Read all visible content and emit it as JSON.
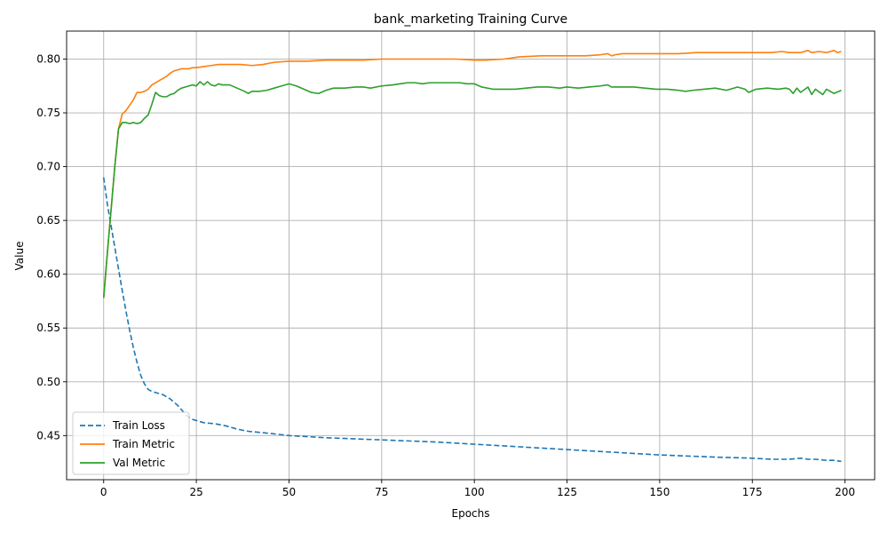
{
  "chart_data": {
    "type": "line",
    "title": "bank_marketing Training Curve",
    "xlabel": "Epochs",
    "ylabel": "Value",
    "xlim": [
      -10,
      208
    ],
    "ylim": [
      0.409,
      0.826
    ],
    "xticks": [
      0,
      25,
      50,
      75,
      100,
      125,
      150,
      175,
      200
    ],
    "xtick_labels": [
      "0",
      "25",
      "50",
      "75",
      "100",
      "125",
      "150",
      "175",
      "200"
    ],
    "yticks": [
      0.45,
      0.5,
      0.55,
      0.6,
      0.65,
      0.7,
      0.75,
      0.8
    ],
    "ytick_labels": [
      "0.45",
      "0.50",
      "0.55",
      "0.60",
      "0.65",
      "0.70",
      "0.75",
      "0.80"
    ],
    "grid": true,
    "legend_position": "lower-left",
    "series": [
      {
        "name": "Train Loss",
        "color": "#1f77b4",
        "style": "dashed",
        "points": [
          [
            0,
            0.69
          ],
          [
            1,
            0.665
          ],
          [
            2,
            0.645
          ],
          [
            3,
            0.625
          ],
          [
            4,
            0.605
          ],
          [
            5,
            0.585
          ],
          [
            6,
            0.566
          ],
          [
            7,
            0.548
          ],
          [
            8,
            0.532
          ],
          [
            9,
            0.518
          ],
          [
            10,
            0.506
          ],
          [
            11,
            0.498
          ],
          [
            12,
            0.493
          ],
          [
            13,
            0.491
          ],
          [
            14,
            0.49
          ],
          [
            15,
            0.489
          ],
          [
            16,
            0.488
          ],
          [
            17,
            0.486
          ],
          [
            18,
            0.484
          ],
          [
            19,
            0.481
          ],
          [
            20,
            0.478
          ],
          [
            21,
            0.474
          ],
          [
            22,
            0.47
          ],
          [
            23,
            0.467
          ],
          [
            24,
            0.465
          ],
          [
            25,
            0.464
          ],
          [
            27,
            0.462
          ],
          [
            30,
            0.461
          ],
          [
            33,
            0.459
          ],
          [
            36,
            0.456
          ],
          [
            39,
            0.454
          ],
          [
            45,
            0.452
          ],
          [
            50,
            0.45
          ],
          [
            60,
            0.448
          ],
          [
            75,
            0.446
          ],
          [
            90,
            0.444
          ],
          [
            100,
            0.442
          ],
          [
            110,
            0.44
          ],
          [
            125,
            0.437
          ],
          [
            140,
            0.434
          ],
          [
            150,
            0.432
          ],
          [
            165,
            0.43
          ],
          [
            175,
            0.429
          ],
          [
            180,
            0.428
          ],
          [
            185,
            0.428
          ],
          [
            188,
            0.429
          ],
          [
            190,
            0.428
          ],
          [
            192,
            0.428
          ],
          [
            195,
            0.427
          ],
          [
            197,
            0.427
          ],
          [
            199,
            0.426
          ]
        ]
      },
      {
        "name": "Train Metric",
        "color": "#ff7f0e",
        "style": "solid",
        "points": [
          [
            0,
            0.578
          ],
          [
            1,
            0.62
          ],
          [
            2,
            0.66
          ],
          [
            3,
            0.7
          ],
          [
            4,
            0.735
          ],
          [
            5,
            0.749
          ],
          [
            6,
            0.752
          ],
          [
            7,
            0.757
          ],
          [
            8,
            0.762
          ],
          [
            9,
            0.769
          ],
          [
            10,
            0.769
          ],
          [
            11,
            0.77
          ],
          [
            12,
            0.772
          ],
          [
            13,
            0.776
          ],
          [
            14,
            0.778
          ],
          [
            15,
            0.78
          ],
          [
            16,
            0.782
          ],
          [
            17,
            0.784
          ],
          [
            18,
            0.787
          ],
          [
            19,
            0.789
          ],
          [
            20,
            0.79
          ],
          [
            21,
            0.791
          ],
          [
            22,
            0.791
          ],
          [
            23,
            0.791
          ],
          [
            24,
            0.792
          ],
          [
            25,
            0.792
          ],
          [
            27,
            0.793
          ],
          [
            29,
            0.794
          ],
          [
            31,
            0.795
          ],
          [
            33,
            0.795
          ],
          [
            35,
            0.795
          ],
          [
            37,
            0.795
          ],
          [
            40,
            0.794
          ],
          [
            43,
            0.795
          ],
          [
            46,
            0.797
          ],
          [
            50,
            0.798
          ],
          [
            55,
            0.798
          ],
          [
            60,
            0.799
          ],
          [
            65,
            0.799
          ],
          [
            70,
            0.799
          ],
          [
            75,
            0.8
          ],
          [
            80,
            0.8
          ],
          [
            85,
            0.8
          ],
          [
            90,
            0.8
          ],
          [
            95,
            0.8
          ],
          [
            100,
            0.799
          ],
          [
            103,
            0.799
          ],
          [
            108,
            0.8
          ],
          [
            112,
            0.802
          ],
          [
            118,
            0.803
          ],
          [
            122,
            0.803
          ],
          [
            125,
            0.803
          ],
          [
            130,
            0.803
          ],
          [
            134,
            0.804
          ],
          [
            136,
            0.805
          ],
          [
            137,
            0.803
          ],
          [
            138,
            0.804
          ],
          [
            140,
            0.805
          ],
          [
            145,
            0.805
          ],
          [
            150,
            0.805
          ],
          [
            155,
            0.805
          ],
          [
            160,
            0.806
          ],
          [
            165,
            0.806
          ],
          [
            170,
            0.806
          ],
          [
            175,
            0.806
          ],
          [
            180,
            0.806
          ],
          [
            183,
            0.807
          ],
          [
            185,
            0.806
          ],
          [
            188,
            0.806
          ],
          [
            190,
            0.808
          ],
          [
            191,
            0.806
          ],
          [
            193,
            0.807
          ],
          [
            195,
            0.806
          ],
          [
            197,
            0.808
          ],
          [
            198,
            0.806
          ],
          [
            199,
            0.807
          ]
        ]
      },
      {
        "name": "Val Metric",
        "color": "#2ca02c",
        "style": "solid",
        "points": [
          [
            0,
            0.578
          ],
          [
            1,
            0.62
          ],
          [
            2,
            0.66
          ],
          [
            3,
            0.7
          ],
          [
            4,
            0.735
          ],
          [
            5,
            0.741
          ],
          [
            6,
            0.741
          ],
          [
            7,
            0.74
          ],
          [
            8,
            0.741
          ],
          [
            9,
            0.74
          ],
          [
            10,
            0.741
          ],
          [
            11,
            0.745
          ],
          [
            12,
            0.748
          ],
          [
            13,
            0.758
          ],
          [
            14,
            0.769
          ],
          [
            15,
            0.766
          ],
          [
            16,
            0.765
          ],
          [
            17,
            0.765
          ],
          [
            18,
            0.767
          ],
          [
            19,
            0.768
          ],
          [
            20,
            0.771
          ],
          [
            21,
            0.773
          ],
          [
            22,
            0.774
          ],
          [
            23,
            0.775
          ],
          [
            24,
            0.776
          ],
          [
            25,
            0.775
          ],
          [
            26,
            0.779
          ],
          [
            27,
            0.776
          ],
          [
            28,
            0.779
          ],
          [
            29,
            0.776
          ],
          [
            30,
            0.775
          ],
          [
            31,
            0.777
          ],
          [
            32,
            0.776
          ],
          [
            34,
            0.776
          ],
          [
            36,
            0.773
          ],
          [
            38,
            0.77
          ],
          [
            39,
            0.768
          ],
          [
            40,
            0.77
          ],
          [
            42,
            0.77
          ],
          [
            44,
            0.771
          ],
          [
            46,
            0.773
          ],
          [
            48,
            0.775
          ],
          [
            50,
            0.777
          ],
          [
            52,
            0.775
          ],
          [
            54,
            0.772
          ],
          [
            56,
            0.769
          ],
          [
            58,
            0.768
          ],
          [
            60,
            0.771
          ],
          [
            62,
            0.773
          ],
          [
            65,
            0.773
          ],
          [
            68,
            0.774
          ],
          [
            70,
            0.774
          ],
          [
            72,
            0.773
          ],
          [
            75,
            0.775
          ],
          [
            78,
            0.776
          ],
          [
            80,
            0.777
          ],
          [
            82,
            0.778
          ],
          [
            84,
            0.778
          ],
          [
            86,
            0.777
          ],
          [
            88,
            0.778
          ],
          [
            90,
            0.778
          ],
          [
            92,
            0.778
          ],
          [
            94,
            0.778
          ],
          [
            96,
            0.778
          ],
          [
            98,
            0.777
          ],
          [
            100,
            0.777
          ],
          [
            102,
            0.774
          ],
          [
            105,
            0.772
          ],
          [
            108,
            0.772
          ],
          [
            111,
            0.772
          ],
          [
            114,
            0.773
          ],
          [
            117,
            0.774
          ],
          [
            120,
            0.774
          ],
          [
            123,
            0.773
          ],
          [
            125,
            0.774
          ],
          [
            128,
            0.773
          ],
          [
            131,
            0.774
          ],
          [
            134,
            0.775
          ],
          [
            136,
            0.776
          ],
          [
            137,
            0.774
          ],
          [
            140,
            0.774
          ],
          [
            143,
            0.774
          ],
          [
            146,
            0.773
          ],
          [
            149,
            0.772
          ],
          [
            152,
            0.772
          ],
          [
            155,
            0.771
          ],
          [
            157,
            0.77
          ],
          [
            159,
            0.771
          ],
          [
            162,
            0.772
          ],
          [
            165,
            0.773
          ],
          [
            168,
            0.771
          ],
          [
            171,
            0.774
          ],
          [
            173,
            0.772
          ],
          [
            174,
            0.769
          ],
          [
            176,
            0.772
          ],
          [
            179,
            0.773
          ],
          [
            182,
            0.772
          ],
          [
            184,
            0.773
          ],
          [
            185,
            0.772
          ],
          [
            186,
            0.768
          ],
          [
            187,
            0.773
          ],
          [
            188,
            0.769
          ],
          [
            190,
            0.774
          ],
          [
            191,
            0.767
          ],
          [
            192,
            0.772
          ],
          [
            194,
            0.767
          ],
          [
            195,
            0.772
          ],
          [
            197,
            0.768
          ],
          [
            199,
            0.771
          ]
        ]
      }
    ]
  }
}
